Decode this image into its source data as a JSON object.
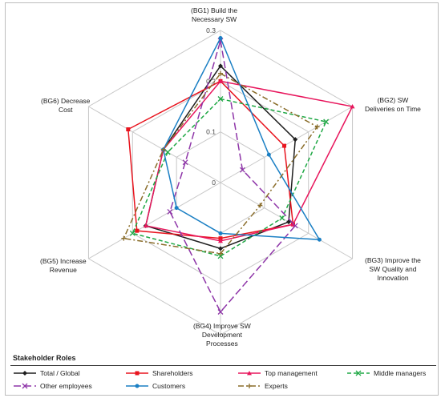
{
  "chart_data": {
    "type": "radar",
    "axes": [
      "(BG1) Build the\nNecessary SW",
      "(BG2) SW\nDeliveries on Time",
      "(BG3) Improve the\nSW Quality and\nInnovation",
      "(BG4) Improve SW\nDevelopment\nProcesses",
      "(BG5) Increase\nRevenue",
      "(BG6) Decrease\nCost"
    ],
    "range": [
      0,
      0.3
    ],
    "tick_labels": [
      "0",
      "0.1",
      "0.2",
      "0.3"
    ],
    "series": [
      {
        "name": "Total / Global",
        "color": "#1f1f1f",
        "dash": "solid",
        "marker": "diamond",
        "values": [
          0.23,
          0.17,
          0.155,
          0.13,
          0.17,
          0.13
        ]
      },
      {
        "name": "Shareholders",
        "color": "#e8141e",
        "dash": "solid",
        "marker": "square",
        "values": [
          0.2,
          0.145,
          0.165,
          0.11,
          0.19,
          0.21
        ]
      },
      {
        "name": "Top management",
        "color": "#e8175d",
        "dash": "solid",
        "marker": "triangle",
        "values": [
          0.2,
          0.3,
          0.165,
          0.115,
          0.17,
          0.13
        ]
      },
      {
        "name": "Middle managers",
        "color": "#1fa845",
        "dash": "dashed",
        "marker": "x",
        "values": [
          0.165,
          0.24,
          0.14,
          0.145,
          0.2,
          0.12
        ]
      },
      {
        "name": "Other employees",
        "color": "#8e35a8",
        "dash": "longdash",
        "marker": "x",
        "values": [
          0.28,
          0.05,
          0.17,
          0.255,
          0.115,
          0.08
        ]
      },
      {
        "name": "Customers",
        "color": "#1a7fc4",
        "dash": "solid",
        "marker": "circle",
        "values": [
          0.285,
          0.11,
          0.225,
          0.1,
          0.1,
          0.13
        ]
      },
      {
        "name": "Experts",
        "color": "#8a6d2a",
        "dash": "dashdot",
        "marker": "plus",
        "values": [
          0.215,
          0.22,
          0.09,
          0.14,
          0.22,
          0.13
        ]
      }
    ],
    "legend_title": "Stakeholder Roles",
    "legend_position": "bottom",
    "grid": true
  }
}
